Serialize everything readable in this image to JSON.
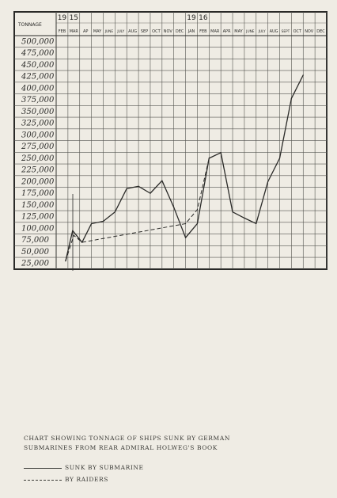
{
  "chart_data": {
    "type": "line",
    "ylabel": "TONNAGE",
    "year_labels": [
      {
        "label": "19",
        "label2": "15",
        "start_index": 0
      },
      {
        "label": "19",
        "label2": "16",
        "start_index": 11
      }
    ],
    "categories": [
      "FEB",
      "MAR",
      "AP",
      "MAY",
      "JUNE",
      "JULY",
      "AUG",
      "SEP",
      "OCT",
      "NOV",
      "DEC",
      "JAN",
      "FEB",
      "MAR",
      "APR",
      "MAY",
      "JUNE",
      "JULY",
      "AUG",
      "SEPT",
      "OCT",
      "NOV",
      "DEC"
    ],
    "yticks": [
      "25,000",
      "50,000",
      "75,000",
      "100,000",
      "125,000",
      "150,000",
      "175,000",
      "200,000",
      "225,000",
      "250,000",
      "275,000",
      "300,000",
      "325,000",
      "350,000",
      "375,000",
      "400,000",
      "425,000",
      "450,000",
      "475,000",
      "500,000"
    ],
    "ylim": [
      12500,
      512500
    ],
    "series": [
      {
        "name": "SUNK BY SUBMARINE",
        "style": "solid",
        "x": [
          0.8,
          1.4,
          2.2,
          3.0,
          4.0,
          5.0,
          6.0,
          7.0,
          8.0,
          9.0,
          10.0,
          11.0,
          12.0,
          13.0,
          14.0,
          15.0,
          16.0,
          17.0,
          18.0,
          19.0,
          20.0,
          21.0
        ],
        "values": [
          30000,
          95000,
          70000,
          110000,
          115000,
          135000,
          185000,
          190000,
          175000,
          202000,
          145000,
          80000,
          110000,
          250000,
          262000,
          135000,
          122000,
          110000,
          200000,
          250000,
          378000,
          428000
        ]
      },
      {
        "name": "BY RAIDERS",
        "style": "dashed",
        "x": [
          0.8,
          1.5,
          2.2,
          11.0,
          12.0,
          13.0
        ],
        "values": [
          30000,
          85000,
          70000,
          110000,
          140000,
          250000
        ]
      }
    ],
    "grid": true,
    "caption": "CHART SHOWING TONNAGE OF SHIPS SUNK BY GERMAN\nSUBMARINES FROM REAR ADMIRAL HOLWEG'S BOOK"
  },
  "colors": {
    "ink": "#2a2a28",
    "paper": "#efece4",
    "grid": "#555550"
  }
}
